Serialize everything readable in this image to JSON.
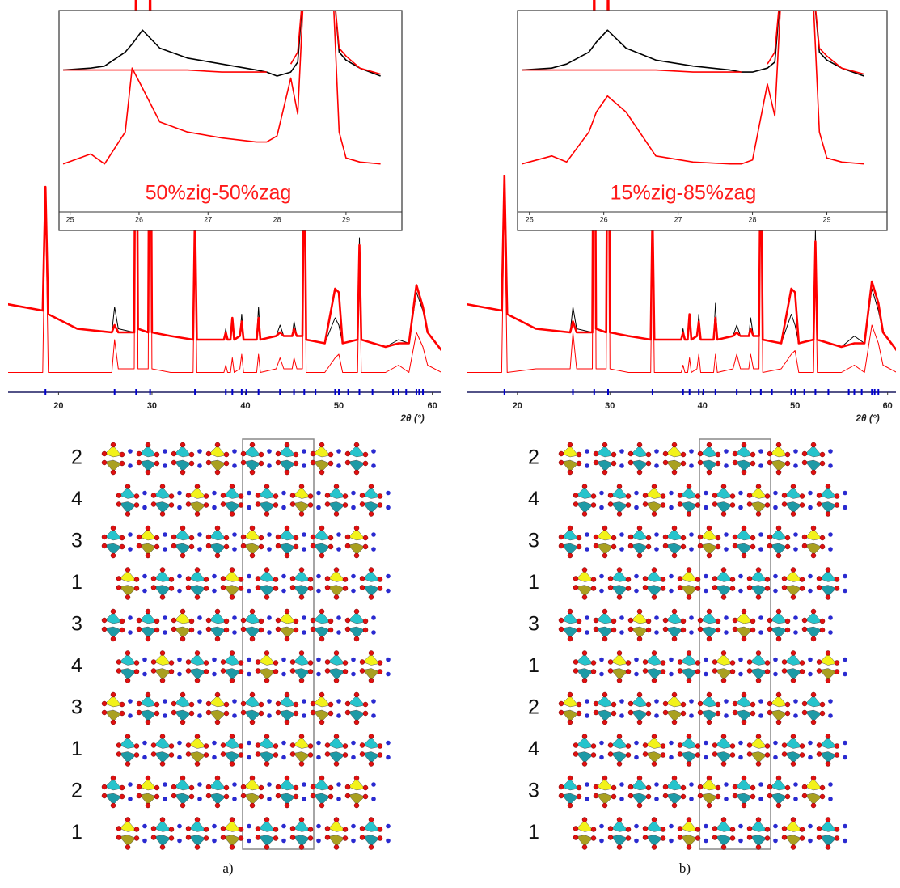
{
  "chart_data": [
    {
      "type": "line",
      "x": [
        14,
        18.3,
        18.6,
        18.9,
        22,
        25.7,
        26.0,
        26.4,
        28.1,
        28.3,
        28.5,
        29.6,
        29.8,
        30.0,
        32,
        34.4,
        34.6,
        34.8,
        37.7,
        37.9,
        38.1,
        38.4,
        38.6,
        38.8,
        39.4,
        39.6,
        39.8,
        41.2,
        41.4,
        41.6,
        43.3,
        43.7,
        44.1,
        45.0,
        45.2,
        45.5,
        46.1,
        46.3,
        46.5,
        48.5,
        49.6,
        50.0,
        50.4,
        52.0,
        52.2,
        52.4,
        55,
        56.4,
        57.5,
        58.3,
        59.0,
        59.5,
        61
      ],
      "series": [
        {
          "color": "#000000",
          "values": [
            20,
            18,
            52,
            17,
            13,
            12,
            19,
            13,
            12,
            120,
            13,
            12,
            120,
            12,
            11,
            10,
            45,
            10,
            10,
            13,
            10,
            10,
            15,
            10,
            11,
            17,
            10,
            10,
            19,
            10,
            11,
            14,
            11,
            11,
            15,
            11,
            11,
            70,
            10,
            9,
            16,
            14,
            9,
            10,
            38,
            10,
            8,
            10,
            9,
            23,
            18,
            12,
            7
          ]
        },
        {
          "color": "#ff0000",
          "values": [
            20,
            18,
            52,
            17,
            13,
            12,
            14,
            12,
            12,
            120,
            13,
            12,
            120,
            12,
            11,
            10,
            45,
            10,
            10,
            12,
            10,
            10,
            16,
            10,
            11,
            15,
            10,
            10,
            16,
            10,
            11,
            12,
            11,
            11,
            13,
            11,
            11,
            70,
            10,
            9,
            24,
            23,
            9,
            10,
            36,
            10,
            8,
            9,
            9,
            25,
            19,
            12,
            7
          ]
        },
        {
          "color": "#ff0000",
          "values": [
            1,
            1,
            50,
            1,
            1,
            1,
            10,
            2,
            2,
            120,
            2,
            2,
            120,
            2,
            1,
            1,
            43,
            1,
            1,
            3,
            1,
            1,
            5,
            1,
            2,
            6,
            1,
            1,
            6,
            1,
            2,
            5,
            2,
            2,
            5,
            2,
            2,
            70,
            1,
            1,
            5,
            6,
            1,
            1,
            35,
            1,
            1,
            3,
            1,
            12,
            8,
            3,
            1
          ]
        }
      ],
      "reflections": [
        18.6,
        26.0,
        28.3,
        29.8,
        34.6,
        37.9,
        38.6,
        39.6,
        40.1,
        41.4,
        43.7,
        45.2,
        46.3,
        47.5,
        49.6,
        50.0,
        51.0,
        52.2,
        53.6,
        55.8,
        56.4,
        57.2,
        58.3,
        58.6,
        59.0
      ],
      "reflection_color": "#0000cc",
      "xlim": [
        14.6,
        60.9
      ],
      "ylim": [
        0,
        100
      ],
      "xticks": [
        20,
        30,
        40,
        50,
        60
      ],
      "xlabel": "2θ (°)"
    },
    {
      "type": "line",
      "x": [
        24.9,
        25.3,
        25.5,
        25.8,
        25.9,
        26.05,
        26.3,
        26.7,
        27.2,
        27.7,
        27.85,
        28.0,
        28.2,
        28.3,
        28.4,
        28.8,
        28.9,
        29.0,
        29.2,
        29.5
      ],
      "series": [
        {
          "color": "#000000",
          "values": [
            71,
            72,
            73,
            80,
            84,
            91,
            82,
            77,
            74,
            71,
            70,
            68,
            70,
            75,
            120,
            120,
            80,
            76,
            72,
            68
          ]
        },
        {
          "color": "#ff0000",
          "values": [
            71,
            71,
            71,
            71,
            71,
            71,
            71,
            71,
            70,
            70,
            70,
            null,
            74,
            80,
            120,
            120,
            82,
            78,
            72,
            69
          ]
        },
        {
          "color": "#ff0000",
          "values": [
            24,
            29,
            24,
            40,
            72,
            62,
            45,
            40,
            37,
            35,
            35,
            38,
            67,
            49,
            120,
            120,
            40,
            27,
            25,
            24
          ]
        }
      ],
      "xlim": [
        24.84,
        29.81
      ],
      "ylim": [
        0,
        100
      ],
      "xticks": [
        25,
        26,
        27,
        28,
        29
      ],
      "annotation": "50%zig-50%zag"
    },
    {
      "type": "line",
      "x": [
        14,
        18.3,
        18.6,
        18.9,
        22,
        25.7,
        26.0,
        26.4,
        28.1,
        28.3,
        28.5,
        29.6,
        29.8,
        30.0,
        32,
        34.4,
        34.6,
        34.8,
        37.7,
        37.9,
        38.1,
        38.4,
        38.6,
        38.8,
        39.4,
        39.6,
        39.8,
        41.2,
        41.4,
        41.6,
        43.3,
        43.7,
        44.1,
        45.0,
        45.2,
        45.5,
        46.1,
        46.3,
        46.5,
        48.5,
        49.6,
        50.0,
        50.4,
        52.0,
        52.2,
        52.4,
        55,
        56.4,
        57.5,
        58.3,
        59.0,
        59.5,
        61
      ],
      "series": [
        {
          "color": "#000000",
          "values": [
            20,
            18,
            55,
            17,
            13,
            12,
            19,
            13,
            12,
            120,
            13,
            12,
            120,
            12,
            11,
            10,
            45,
            10,
            10,
            13,
            10,
            10,
            15,
            10,
            11,
            17,
            10,
            10,
            20,
            10,
            11,
            14,
            11,
            11,
            16,
            11,
            11,
            70,
            10,
            9,
            17,
            14,
            9,
            10,
            40,
            10,
            8,
            11,
            9,
            24,
            18,
            12,
            7
          ]
        },
        {
          "color": "#ff0000",
          "values": [
            20,
            18,
            55,
            17,
            13,
            12,
            15,
            12,
            12,
            120,
            13,
            12,
            120,
            12,
            11,
            10,
            45,
            10,
            10,
            12,
            10,
            10,
            17,
            10,
            11,
            15,
            10,
            10,
            16,
            10,
            11,
            12,
            11,
            11,
            13,
            11,
            11,
            70,
            10,
            9,
            24,
            23,
            9,
            10,
            37,
            10,
            8,
            9,
            9,
            26,
            20,
            12,
            7
          ]
        },
        {
          "color": "#ff0000",
          "values": [
            1,
            1,
            52,
            1,
            2,
            2,
            12,
            2,
            2,
            120,
            2,
            2,
            120,
            2,
            1,
            1,
            43,
            1,
            1,
            3,
            1,
            1,
            5,
            1,
            2,
            6,
            1,
            1,
            6,
            1,
            2,
            6,
            2,
            2,
            6,
            2,
            2,
            70,
            1,
            2,
            6,
            7,
            1,
            1,
            34,
            1,
            1,
            3,
            1,
            14,
            9,
            3,
            1
          ]
        }
      ],
      "reflections": [
        18.6,
        26.0,
        28.3,
        29.8,
        34.6,
        37.9,
        38.6,
        39.6,
        40.1,
        41.4,
        43.7,
        45.2,
        46.3,
        47.5,
        49.6,
        50.0,
        51.0,
        52.2,
        53.6,
        55.8,
        56.4,
        57.2,
        58.3,
        58.6,
        59.0
      ],
      "reflection_color": "#0000cc",
      "xlim": [
        14.6,
        60.9
      ],
      "ylim": [
        0,
        100
      ],
      "xticks": [
        20,
        30,
        40,
        50,
        60
      ],
      "xlabel": "2θ (°)"
    },
    {
      "type": "line",
      "x": [
        24.9,
        25.3,
        25.5,
        25.8,
        25.9,
        26.05,
        26.3,
        26.7,
        27.2,
        27.7,
        27.85,
        28.0,
        28.2,
        28.3,
        28.4,
        28.8,
        28.9,
        29.0,
        29.2,
        29.5
      ],
      "series": [
        {
          "color": "#000000",
          "values": [
            71,
            72,
            74,
            80,
            85,
            91,
            82,
            76,
            73,
            71,
            70,
            70,
            72,
            75,
            120,
            120,
            80,
            76,
            72,
            68
          ]
        },
        {
          "color": "#ff0000",
          "values": [
            71,
            71,
            71,
            71,
            71,
            71,
            71,
            71,
            70,
            70,
            70,
            null,
            74,
            80,
            120,
            120,
            82,
            78,
            72,
            69
          ]
        },
        {
          "color": "#ff0000",
          "values": [
            24,
            28,
            25,
            40,
            50,
            58,
            50,
            28,
            25,
            24,
            24,
            26,
            64,
            48,
            120,
            120,
            40,
            27,
            25,
            24
          ]
        }
      ],
      "xlim": [
        24.84,
        29.81
      ],
      "ylim": [
        0,
        100
      ],
      "xticks": [
        25,
        26,
        27,
        28,
        29
      ],
      "annotation": "15%zig-85%zag"
    }
  ],
  "structures": [
    {
      "layers": [
        "2",
        "4",
        "3",
        "1",
        "3",
        "4",
        "3",
        "1",
        "2",
        "1"
      ],
      "caption": "a)"
    },
    {
      "layers": [
        "2",
        "4",
        "3",
        "1",
        "3",
        "1",
        "2",
        "4",
        "3",
        "1"
      ],
      "caption": "b)"
    }
  ]
}
